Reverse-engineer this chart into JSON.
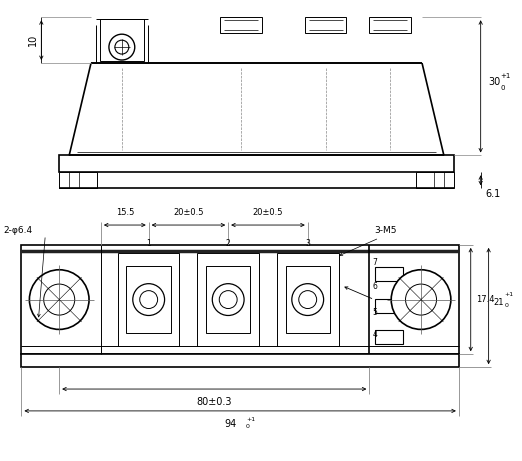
{
  "bg_color": "#ffffff",
  "line_color": "#000000",
  "figsize": [
    5.22,
    4.61
  ],
  "dpi": 100,
  "annotations": {
    "dim_10": "10",
    "dim_30": "30",
    "dim_30_sup": "+1",
    "dim_30_sub": "0",
    "dim_6_1": "6.1",
    "front_2_phi": "2-φ6.4",
    "front_15_5": "15.5",
    "front_20_05_1": "20±0.5",
    "front_20_05_2": "20±0.5",
    "front_3M5": "3-M5",
    "front_17_4": "17.4",
    "front_21": "21",
    "front_21_sup": "+1",
    "front_21_sub": "0",
    "front_80": "80±0.3",
    "front_94": "94",
    "front_94_sup": "+1",
    "front_94_sub": "0"
  }
}
